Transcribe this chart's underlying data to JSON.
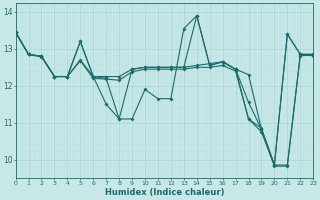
{
  "xlabel": "Humidex (Indice chaleur)",
  "bg_color": "#c8e8e8",
  "grid_color": "#b0d8d8",
  "line_color": "#1a6b6b",
  "xlim": [
    0,
    23
  ],
  "ylim": [
    9.5,
    14.25
  ],
  "x_ticks": [
    0,
    1,
    2,
    3,
    4,
    5,
    6,
    7,
    8,
    9,
    10,
    11,
    12,
    13,
    14,
    15,
    16,
    17,
    18,
    19,
    20,
    21,
    22,
    23
  ],
  "y_ticks": [
    10,
    11,
    12,
    13,
    14
  ],
  "curve1_y": [
    13.45,
    12.85,
    12.8,
    12.25,
    12.25,
    13.2,
    12.25,
    11.5,
    11.1,
    11.1,
    11.9,
    11.65,
    11.65,
    13.55,
    13.9,
    12.55,
    12.65,
    12.45,
    11.1,
    10.85,
    9.85,
    13.4,
    12.85,
    12.85
  ],
  "curve2_y": [
    13.45,
    12.85,
    12.8,
    12.25,
    12.25,
    12.7,
    12.25,
    12.25,
    12.25,
    12.45,
    12.5,
    12.5,
    12.5,
    12.5,
    12.55,
    12.6,
    12.65,
    12.45,
    12.3,
    10.82,
    9.85,
    9.85,
    12.85,
    12.85
  ],
  "curve3_y": [
    13.45,
    12.85,
    12.8,
    12.25,
    12.25,
    13.2,
    12.25,
    12.2,
    11.1,
    12.45,
    12.5,
    12.5,
    12.5,
    12.5,
    13.9,
    12.55,
    12.65,
    12.45,
    11.55,
    10.82,
    9.85,
    13.4,
    12.85,
    12.85
  ],
  "curve4_y": [
    13.45,
    12.85,
    12.78,
    12.25,
    12.25,
    12.68,
    12.2,
    12.18,
    12.15,
    12.38,
    12.45,
    12.45,
    12.45,
    12.45,
    12.5,
    12.5,
    12.55,
    12.4,
    11.1,
    10.75,
    9.82,
    9.82,
    12.82,
    12.82
  ]
}
